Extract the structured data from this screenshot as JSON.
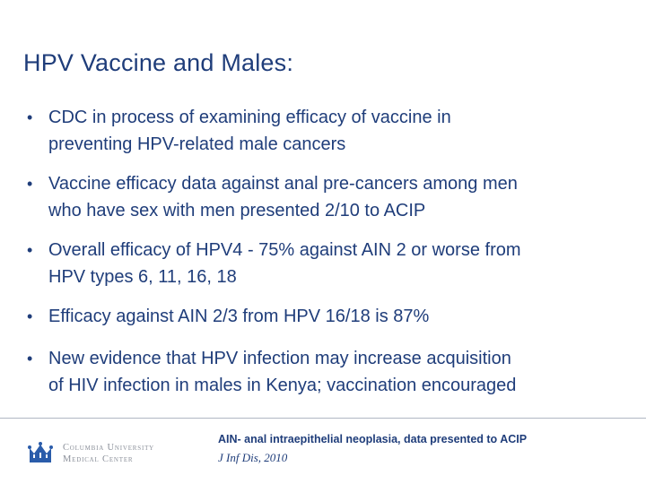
{
  "slide": {
    "title": "HPV Vaccine and Males:",
    "bullet_symbol": "•",
    "bullets": [
      {
        "line1": "CDC in process of examining efficacy of vaccine in",
        "line2": "preventing HPV-related male cancers"
      },
      {
        "line1": "Vaccine efficacy data against anal pre-cancers among men",
        "line2": "who have sex with men presented 2/10 to ACIP"
      },
      {
        "line1": "Overall efficacy of HPV4 - 75% against AIN 2 or worse from",
        "line2": "HPV types 6, 11, 16, 18"
      },
      {
        "line1": "Efficacy against AIN 2/3 from HPV 16/18 is 87%",
        "line2": ""
      },
      {
        "line1": "New evidence that HPV infection may increase acquisition",
        "line2": "of HIV infection in males in Kenya; vaccination encouraged"
      }
    ]
  },
  "footer": {
    "logo": {
      "line1": "Columbia University",
      "line2": "Medical Center",
      "icon": "crown-icon",
      "color": "#2a5caa"
    },
    "footnote_line1": "AIN- anal intraepithelial neoplasia, data presented to ACIP",
    "footnote_line2": "J Inf Dis, 2010"
  },
  "colors": {
    "text": "#1f3d7a",
    "rule": "#b0b7c3",
    "logo_text": "#8a8f99"
  }
}
